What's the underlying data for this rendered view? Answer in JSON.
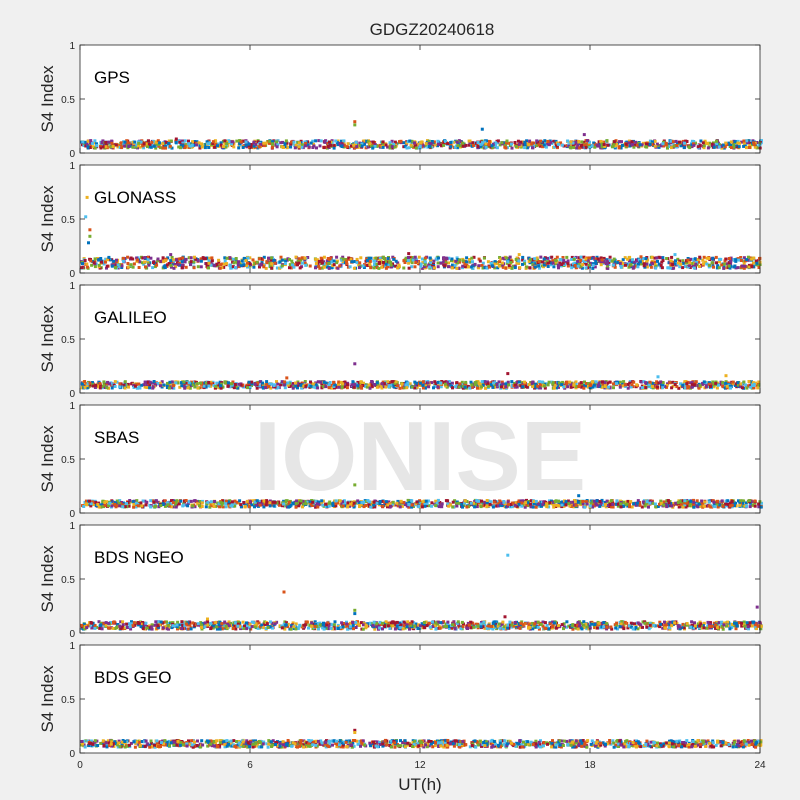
{
  "figure": {
    "title": "GDGZ20240618",
    "watermark": "IONISE"
  },
  "chart_data": [
    {
      "type": "scatter",
      "label": "GPS",
      "ylabel": "S4 Index",
      "xlabel": "",
      "xlim": [
        0,
        24
      ],
      "ylim": [
        0,
        1
      ],
      "xticks": [
        0,
        6,
        12,
        18,
        24
      ],
      "yticks": [
        0,
        0.5,
        1
      ],
      "xtick_labels_shown": false,
      "grid": false,
      "band": [
        0.03,
        0.13
      ],
      "outliers": [
        {
          "x": 9.7,
          "y": 0.29
        },
        {
          "x": 9.7,
          "y": 0.26
        },
        {
          "x": 14.2,
          "y": 0.22
        },
        {
          "x": 17.8,
          "y": 0.17
        },
        {
          "x": 3.4,
          "y": 0.13
        }
      ]
    },
    {
      "type": "scatter",
      "label": "GLONASS",
      "ylabel": "S4 Index",
      "xlabel": "",
      "xlim": [
        0,
        24
      ],
      "ylim": [
        0,
        1
      ],
      "xticks": [
        0,
        6,
        12,
        18,
        24
      ],
      "yticks": [
        0,
        0.5,
        1
      ],
      "xtick_labels_shown": false,
      "grid": false,
      "band": [
        0.02,
        0.17
      ],
      "outliers": [
        {
          "x": 0.25,
          "y": 0.7
        },
        {
          "x": 0.2,
          "y": 0.52
        },
        {
          "x": 0.35,
          "y": 0.4
        },
        {
          "x": 0.35,
          "y": 0.34
        },
        {
          "x": 0.3,
          "y": 0.28
        },
        {
          "x": 3.2,
          "y": 0.17
        },
        {
          "x": 11.6,
          "y": 0.18
        },
        {
          "x": 15.5,
          "y": 0.17
        },
        {
          "x": 21.0,
          "y": 0.17
        },
        {
          "x": 19.8,
          "y": 0.15
        }
      ]
    },
    {
      "type": "scatter",
      "label": "GALILEO",
      "ylabel": "S4 Index",
      "xlabel": "",
      "xlim": [
        0,
        24
      ],
      "ylim": [
        0,
        1
      ],
      "xticks": [
        0,
        6,
        12,
        18,
        24
      ],
      "yticks": [
        0,
        0.5,
        1
      ],
      "xtick_labels_shown": false,
      "grid": false,
      "band": [
        0.03,
        0.12
      ],
      "outliers": [
        {
          "x": 9.7,
          "y": 0.27
        },
        {
          "x": 15.1,
          "y": 0.18
        },
        {
          "x": 22.8,
          "y": 0.16
        },
        {
          "x": 20.4,
          "y": 0.15
        },
        {
          "x": 7.3,
          "y": 0.14
        }
      ]
    },
    {
      "type": "scatter",
      "label": "SBAS",
      "ylabel": "S4 Index",
      "xlabel": "",
      "xlim": [
        0,
        24
      ],
      "ylim": [
        0,
        1
      ],
      "xticks": [
        0,
        6,
        12,
        18,
        24
      ],
      "yticks": [
        0,
        0.5,
        1
      ],
      "xtick_labels_shown": false,
      "grid": false,
      "band": [
        0.04,
        0.13
      ],
      "outliers": [
        {
          "x": 9.7,
          "y": 0.26
        },
        {
          "x": 17.6,
          "y": 0.16
        }
      ]
    },
    {
      "type": "scatter",
      "label": "BDS NGEO",
      "ylabel": "S4 Index",
      "xlabel": "",
      "xlim": [
        0,
        24
      ],
      "ylim": [
        0,
        1
      ],
      "xticks": [
        0,
        6,
        12,
        18,
        24
      ],
      "yticks": [
        0,
        0.5,
        1
      ],
      "xtick_labels_shown": false,
      "grid": false,
      "band": [
        0.02,
        0.12
      ],
      "outliers": [
        {
          "x": 15.1,
          "y": 0.72
        },
        {
          "x": 7.2,
          "y": 0.38
        },
        {
          "x": 9.7,
          "y": 0.21
        },
        {
          "x": 9.7,
          "y": 0.18
        },
        {
          "x": 23.9,
          "y": 0.24
        },
        {
          "x": 15.0,
          "y": 0.15
        },
        {
          "x": 4.5,
          "y": 0.13
        }
      ]
    },
    {
      "type": "scatter",
      "label": "BDS GEO",
      "ylabel": "S4 Index",
      "xlabel": "UT(h)",
      "xlim": [
        0,
        24
      ],
      "ylim": [
        0,
        1
      ],
      "xticks": [
        0,
        6,
        12,
        18,
        24
      ],
      "yticks": [
        0,
        0.5,
        1
      ],
      "xtick_labels_shown": true,
      "grid": false,
      "band": [
        0.04,
        0.13
      ],
      "outliers": [
        {
          "x": 9.7,
          "y": 0.21
        },
        {
          "x": 9.7,
          "y": 0.19
        }
      ]
    }
  ],
  "colors": {
    "series": [
      "#0072BD",
      "#D95319",
      "#EDB120",
      "#7E2F8E",
      "#77AC30",
      "#4DBEEE",
      "#A2142F"
    ]
  }
}
